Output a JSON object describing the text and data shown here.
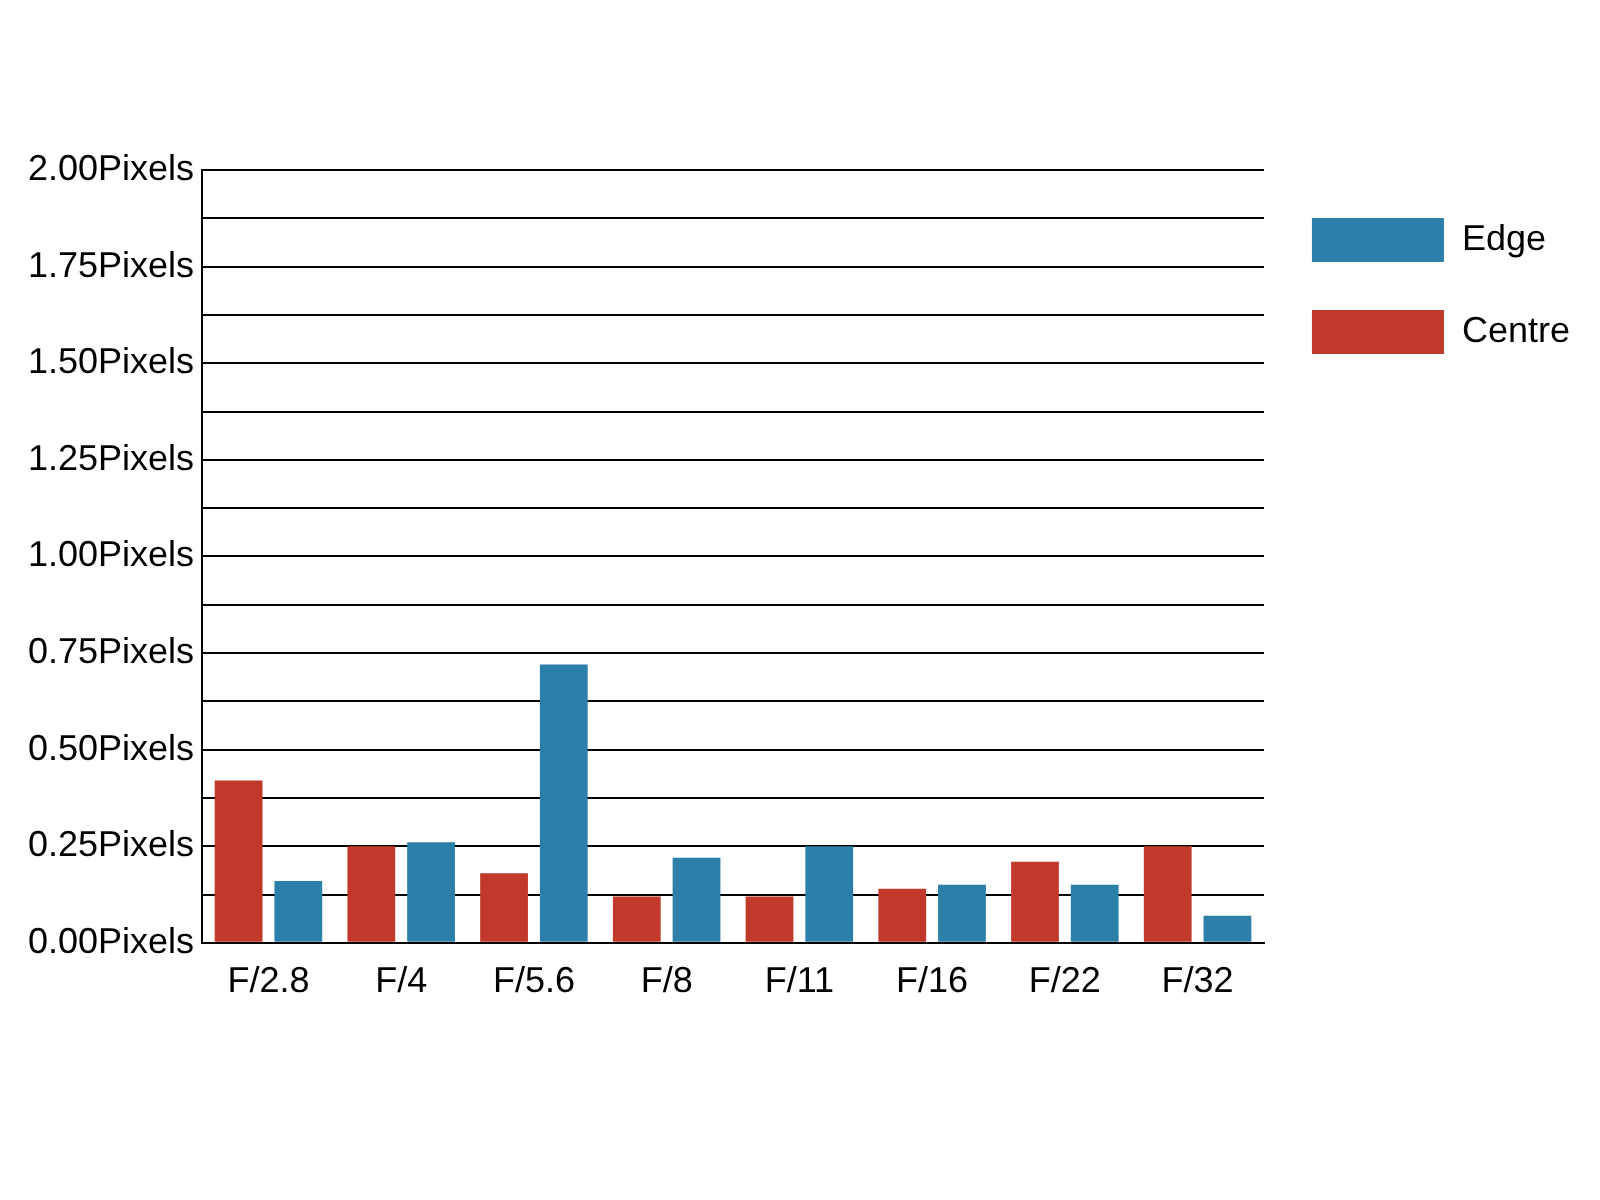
{
  "chart_data": {
    "type": "bar",
    "categories": [
      "F/2.8",
      "F/4",
      "F/5.6",
      "F/8",
      "F/11",
      "F/16",
      "F/22",
      "F/32"
    ],
    "series": [
      {
        "name": "Centre",
        "color": "#c0392b",
        "values": [
          0.42,
          0.25,
          0.18,
          0.12,
          0.12,
          0.14,
          0.21,
          0.25
        ]
      },
      {
        "name": "Edge",
        "color": "#2b7fa8",
        "values": [
          0.16,
          0.26,
          0.72,
          0.22,
          0.25,
          0.15,
          0.15,
          0.07
        ]
      }
    ],
    "ylim": [
      0,
      2
    ],
    "yticks": [
      {
        "value": 0,
        "label": "0.00Pixels"
      },
      {
        "value": 0.125,
        "label": null
      },
      {
        "value": 0.25,
        "label": "0.25Pixels"
      },
      {
        "value": 0.375,
        "label": null
      },
      {
        "value": 0.5,
        "label": "0.50Pixels"
      },
      {
        "value": 0.625,
        "label": null
      },
      {
        "value": 0.75,
        "label": "0.75Pixels"
      },
      {
        "value": 0.875,
        "label": null
      },
      {
        "value": 1,
        "label": "1.00Pixels"
      },
      {
        "value": 1.125,
        "label": null
      },
      {
        "value": 1.25,
        "label": "1.25Pixels"
      },
      {
        "value": 1.375,
        "label": null
      },
      {
        "value": 1.5,
        "label": "1.50Pixels"
      },
      {
        "value": 1.625,
        "label": null
      },
      {
        "value": 1.75,
        "label": "1.75Pixels"
      },
      {
        "value": 1.875,
        "label": null
      },
      {
        "value": 2,
        "label": "2.00Pixels"
      }
    ],
    "grid": "y",
    "legend": "right"
  }
}
